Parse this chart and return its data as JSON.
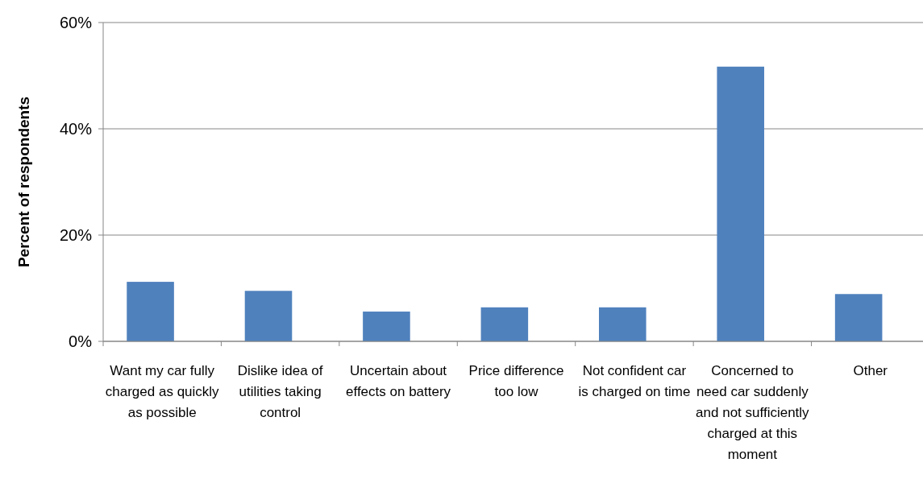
{
  "chart_data": {
    "type": "bar",
    "ylabel": "Percent of respondents",
    "categories": [
      "Want my car fully charged as quickly as possible",
      "Dislike idea of utilities taking control",
      "Uncertain about effects on battery",
      "Price difference too low",
      "Not confident car is charged on time",
      "Concerned to need car suddenly and not sufficiently charged at this moment",
      "Other"
    ],
    "values": [
      11.2,
      9.5,
      5.6,
      6.4,
      6.4,
      51.7,
      8.9
    ],
    "color": "#4f81bd",
    "ylim": [
      0,
      60
    ],
    "yticks": [
      {
        "value": 0,
        "label": "0%"
      },
      {
        "value": 20,
        "label": "20%"
      },
      {
        "value": 40,
        "label": "40%"
      },
      {
        "value": 60,
        "label": "60%"
      }
    ],
    "grid": "y"
  }
}
